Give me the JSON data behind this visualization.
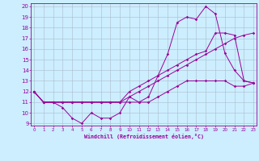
{
  "xlabel": "Windchill (Refroidissement éolien,°C)",
  "bg_color": "#cceeff",
  "grid_color": "#aabbcc",
  "line_color": "#990099",
  "xmin": 0,
  "xmax": 23,
  "ymin": 9,
  "ymax": 20,
  "series": [
    [
      12,
      11,
      11,
      10.5,
      9.5,
      9.0,
      10.0,
      9.5,
      9.5,
      10.0,
      11.5,
      11.0,
      11.5,
      13.5,
      15.5,
      18.5,
      19.0,
      18.8,
      20.0,
      19.3,
      15.6,
      14.0,
      13.0,
      12.8
    ],
    [
      12,
      11,
      11,
      11.0,
      11.0,
      11.0,
      11.0,
      11.0,
      11.0,
      11.0,
      12.0,
      12.5,
      13.0,
      13.5,
      14.0,
      14.5,
      15.0,
      15.5,
      15.8,
      17.5,
      17.5,
      17.3,
      13.0,
      12.8
    ],
    [
      12,
      11,
      11,
      11.0,
      11.0,
      11.0,
      11.0,
      11.0,
      11.0,
      11.0,
      11.5,
      12.0,
      12.5,
      13.0,
      13.5,
      14.0,
      14.5,
      15.0,
      15.5,
      16.0,
      16.5,
      17.0,
      17.3,
      17.5
    ],
    [
      12,
      11,
      11,
      11.0,
      11.0,
      11.0,
      11.0,
      11.0,
      11.0,
      11.0,
      11.0,
      11.0,
      11.0,
      11.5,
      12.0,
      12.5,
      13.0,
      13.0,
      13.0,
      13.0,
      13.0,
      12.5,
      12.5,
      12.8
    ]
  ]
}
